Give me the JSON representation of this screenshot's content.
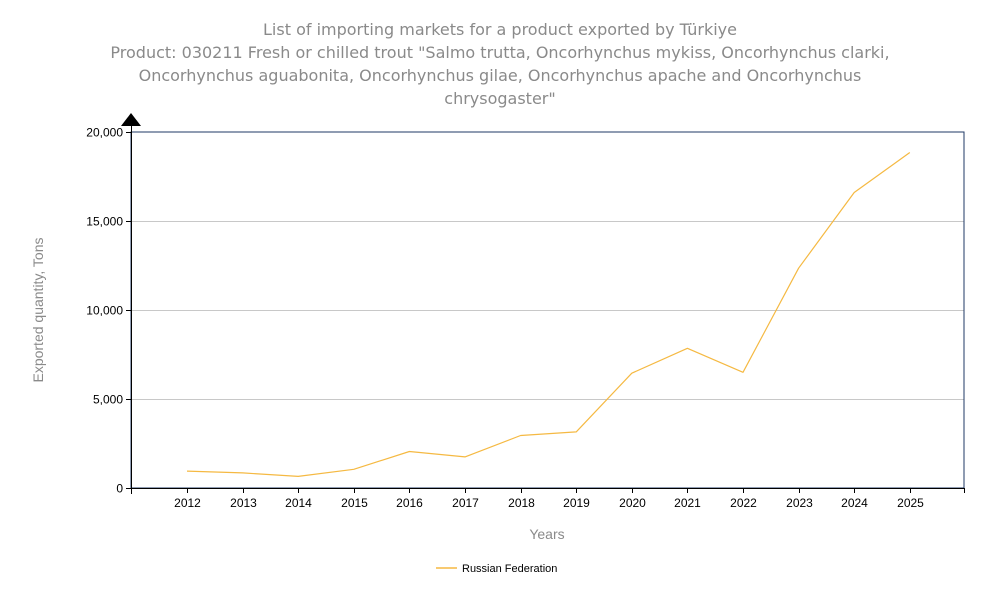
{
  "chart_data": {
    "type": "line",
    "title": "List of importing markets for a product exported by Türkiye",
    "subtitle_lines": [
      "Product: 030211 Fresh or chilled trout \"Salmo trutta, Oncorhynchus mykiss, Oncorhynchus clarki,",
      "Oncorhynchus aguabonita, Oncorhynchus gilae, Oncorhynchus apache and Oncorhynchus",
      "chrysogaster\""
    ],
    "xlabel": "Years",
    "ylabel": "Exported quantity, Tons",
    "x": [
      "2012",
      "2013",
      "2014",
      "2015",
      "2016",
      "2017",
      "2018",
      "2019",
      "2020",
      "2021",
      "2022",
      "2023",
      "2024",
      "2025"
    ],
    "y_ticks": [
      "0",
      "5,000",
      "10,000",
      "15,000",
      "20,000"
    ],
    "ylim": [
      0,
      20000
    ],
    "grid": true,
    "legend_position": "bottom",
    "series": [
      {
        "name": "Russian Federation",
        "color": "#f5b942",
        "values": [
          950,
          850,
          650,
          1050,
          2050,
          1750,
          2950,
          3150,
          6450,
          7850,
          6500,
          12350,
          16600,
          18850
        ]
      }
    ]
  }
}
